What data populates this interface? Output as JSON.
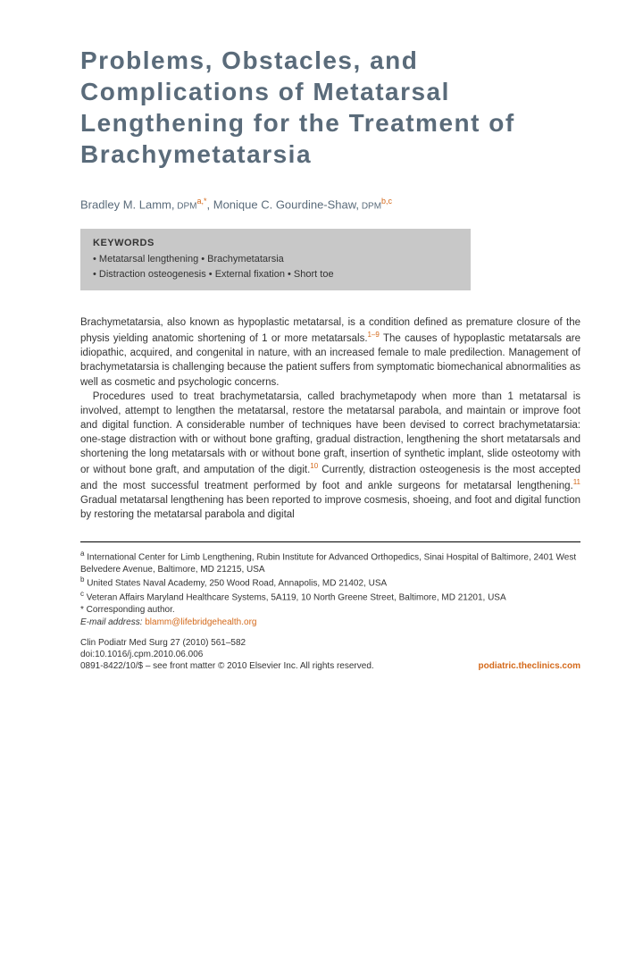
{
  "title": "Problems, Obstacles, and Complications of Metatarsal Lengthening for the Treatment of Brachymetatarsia",
  "authors": {
    "a1_name": "Bradley M. Lamm,",
    "a1_cred": " DPM",
    "a1_sup": "a,*",
    "sep": ", ",
    "a2_name": "Monique C. Gourdine-Shaw,",
    "a2_cred": " DPM",
    "a2_sup": "b,c"
  },
  "keywords": {
    "title": "KEYWORDS",
    "line1": "• Metatarsal lengthening • Brachymetatarsia",
    "line2": "• Distraction osteogenesis • External fixation • Short toe"
  },
  "para1_a": "Brachymetatarsia, also known as hypoplastic metatarsal, is a condition defined as premature closure of the physis yielding anatomic shortening of 1 or more metatarsals.",
  "para1_sup1": "1–9",
  "para1_b": " The causes of hypoplastic metatarsals are idiopathic, acquired, and congenital in nature, with an increased female to male predilection. Management of brachymetatarsia is challenging because the patient suffers from symptomatic biomechanical abnormalities as well as cosmetic and psychologic concerns.",
  "para2_a": "Procedures used to treat brachymetatarsia, called brachymetapody when more than 1 metatarsal is involved, attempt to lengthen the metatarsal, restore the metatarsal parabola, and maintain or improve foot and digital function. A considerable number of techniques have been devised to correct brachymetatarsia: one-stage distraction with or without bone grafting, gradual distraction, lengthening the short metatarsals and shortening the long metatarsals with or without bone graft, insertion of synthetic implant, slide osteotomy with or without bone graft, and amputation of the digit.",
  "para2_sup1": "10",
  "para2_b": " Currently, distraction osteogenesis is the most accepted and the most successful treatment performed by foot and ankle surgeons for metatarsal lengthening.",
  "para2_sup2": "11",
  "para2_c": " Gradual metatarsal lengthening has been reported to improve cosmesis, shoeing, and foot and digital function by restoring the metatarsal parabola and digital",
  "affiliations": {
    "a": "International Center for Limb Lengthening, Rubin Institute for Advanced Orthopedics, Sinai Hospital of Baltimore, 2401 West Belvedere Avenue, Baltimore, MD 21215, USA",
    "b": "United States Naval Academy, 250 Wood Road, Annapolis, MD 21402, USA",
    "c": "Veteran Affairs Maryland Healthcare Systems, 5A119, 10 North Greene Street, Baltimore, MD 21201, USA",
    "corr": "* Corresponding author.",
    "email_label": "E-mail address:",
    "email": "blamm@lifebridgehealth.org"
  },
  "pub": {
    "journal": "Clin Podiatr Med Surg 27 (2010) 561–582",
    "doi": "doi:10.1016/j.cpm.2010.06.006",
    "copyright": "0891-8422/10/$ – see front matter © 2010 Elsevier Inc. All rights reserved.",
    "link": "podiatric.theclinics.com"
  },
  "colors": {
    "title_color": "#5a6b7a",
    "accent": "#d4691a",
    "keywords_bg": "#c8c8c8"
  }
}
